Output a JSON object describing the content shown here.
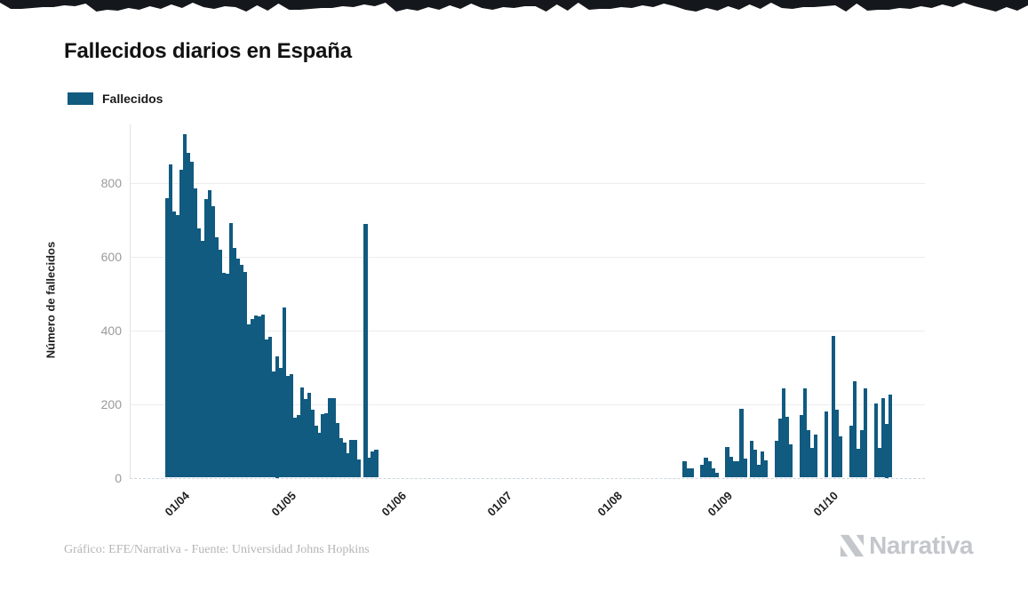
{
  "chart_data": {
    "type": "bar",
    "title": "Fallecidos diarios en España",
    "xlabel": "",
    "ylabel": "Número de fallecidos",
    "legend": [
      {
        "label": "Fallecidos",
        "color": "#115a80"
      }
    ],
    "legend_position": "top-left",
    "grid": true,
    "bar_color": "#115a80",
    "y_ticks": [
      0,
      200,
      400,
      600,
      800
    ],
    "ylim": [
      0,
      950
    ],
    "x_ticks": [
      {
        "label": "01/04",
        "day": 14
      },
      {
        "label": "01/05",
        "day": 44
      },
      {
        "label": "01/06",
        "day": 75
      },
      {
        "label": "01/07",
        "day": 105
      },
      {
        "label": "01/08",
        "day": 136
      },
      {
        "label": "01/09",
        "day": 167
      },
      {
        "label": "01/10",
        "day": 197
      }
    ],
    "num_days": 226,
    "values": [
      0,
      0,
      0,
      0,
      0,
      0,
      0,
      0,
      0,
      0,
      760,
      850,
      722,
      712,
      835,
      932,
      883,
      858,
      786,
      676,
      643,
      757,
      781,
      738,
      653,
      620,
      557,
      553,
      692,
      624,
      595,
      579,
      559,
      417,
      430,
      440,
      437,
      443,
      375,
      383,
      289,
      330,
      297,
      463,
      277,
      280,
      162,
      169,
      245,
      213,
      231,
      185,
      140,
      123,
      173,
      174,
      217,
      217,
      148,
      107,
      95,
      66,
      103,
      103,
      50,
      0,
      690,
      55,
      72,
      75,
      0,
      0,
      0,
      0,
      0,
      0,
      0,
      0,
      0,
      0,
      0,
      0,
      0,
      0,
      0,
      0,
      0,
      0,
      0,
      0,
      0,
      0,
      0,
      0,
      0,
      0,
      0,
      0,
      0,
      0,
      0,
      0,
      0,
      0,
      0,
      0,
      0,
      0,
      0,
      0,
      0,
      0,
      0,
      0,
      0,
      0,
      0,
      0,
      0,
      0,
      0,
      0,
      0,
      0,
      0,
      0,
      0,
      0,
      0,
      0,
      0,
      0,
      0,
      0,
      0,
      0,
      0,
      0,
      0,
      0,
      0,
      0,
      0,
      0,
      0,
      0,
      0,
      0,
      0,
      0,
      0,
      0,
      0,
      0,
      0,
      0,
      45,
      25,
      25,
      0,
      0,
      36,
      55,
      45,
      25,
      13,
      0,
      0,
      83,
      57,
      45,
      45,
      186,
      52,
      0,
      99,
      77,
      34,
      72,
      47,
      0,
      0,
      100,
      160,
      242,
      165,
      90,
      0,
      0,
      170,
      243,
      130,
      82,
      116,
      0,
      0,
      180,
      0,
      386,
      185,
      113,
      0,
      0,
      141,
      263,
      79,
      128,
      243,
      0,
      0,
      201,
      80,
      216,
      146,
      225,
      0,
      0,
      0,
      0,
      0,
      0,
      0,
      0,
      0,
      0,
      0
    ]
  },
  "footer": {
    "credit": "Gráfico: EFE/Narrativa - Fuente: Universidad Johns Hopkins",
    "logo_text": "Narrativa"
  }
}
